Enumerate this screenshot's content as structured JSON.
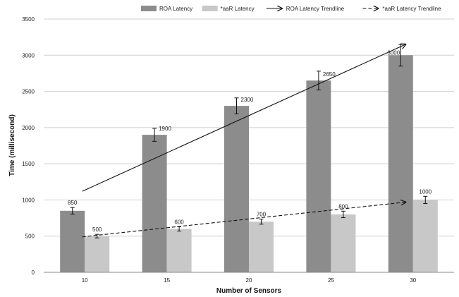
{
  "chart_data": {
    "type": "bar",
    "categories": [
      "10",
      "15",
      "20",
      "25",
      "30"
    ],
    "series": [
      {
        "name": "ROA Latency",
        "values": [
          850,
          1900,
          2300,
          2650,
          3000
        ],
        "errors": [
          45,
          90,
          110,
          130,
          150
        ],
        "color": "#8c8c8c"
      },
      {
        "name": "*aaR Latency",
        "values": [
          500,
          600,
          700,
          800,
          1000
        ],
        "errors": [
          25,
          30,
          35,
          45,
          50
        ],
        "color": "#c8c8c8"
      }
    ],
    "trendlines": [
      {
        "name": "ROA Latency Trendline",
        "style": "solid",
        "from": {
          "x": "10",
          "y": 1120
        },
        "to": {
          "x": "30",
          "y": 3150
        }
      },
      {
        "name": "*aaR Latency Trendline",
        "style": "dashed",
        "from": {
          "x": "10",
          "y": 490
        },
        "to": {
          "x": "30",
          "y": 970
        }
      }
    ],
    "xlabel": "Number of Sensors",
    "ylabel": "Time (millisecond)",
    "ylim": [
      0,
      3500
    ],
    "yticks": [
      0,
      500,
      1000,
      1500,
      2000,
      2500,
      3000,
      3500
    ],
    "grid": true,
    "legend": "top"
  }
}
